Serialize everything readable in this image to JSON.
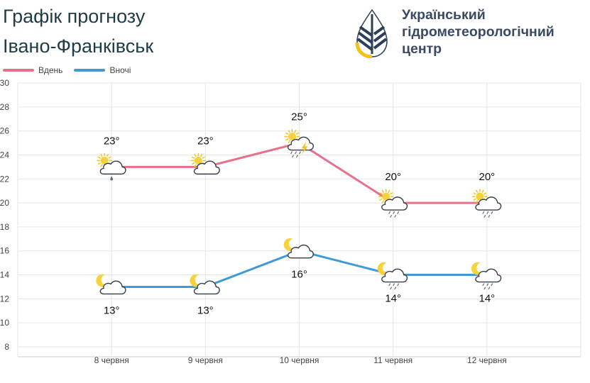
{
  "header": {
    "title": "Графік прогнозу",
    "city": "Івано-Франківськ",
    "org_lines": [
      "Український",
      "гідрометеорологічний",
      "центр"
    ]
  },
  "colors": {
    "day": "#e8708a",
    "night": "#3f9ad6",
    "text": "#1f3b46",
    "grid": "#e6e6e6"
  },
  "chart_data": {
    "type": "line",
    "categories": [
      "8 червня",
      "9 червня",
      "10 червня",
      "11 червня",
      "12 червня"
    ],
    "series": [
      {
        "name": "Вдень",
        "values": [
          23,
          23,
          25,
          20,
          20
        ],
        "labels": [
          "23°",
          "23°",
          "25°",
          "20°",
          "20°"
        ],
        "icons": [
          "sun-cloud-drizzle-icon",
          "sun-cloud-icon",
          "sun-cloud-thunder-rain-icon",
          "sun-cloud-rain-icon",
          "sun-cloud-rain-icon"
        ]
      },
      {
        "name": "Вночі",
        "values": [
          13,
          13,
          16,
          14,
          14
        ],
        "labels": [
          "13°",
          "13°",
          "16°",
          "14°",
          "14°"
        ],
        "icons": [
          "moon-cloud-icon",
          "moon-cloud-icon",
          "moon-cloud-icon",
          "moon-cloud-rain-icon",
          "moon-cloud-rain-icon"
        ]
      }
    ],
    "ylim": [
      8,
      30
    ],
    "yticks": [
      "8",
      "10",
      "12",
      "14",
      "16",
      "18",
      "20",
      "22",
      "24",
      "26",
      "28",
      "30"
    ],
    "grid": true,
    "legend": "top-left"
  }
}
